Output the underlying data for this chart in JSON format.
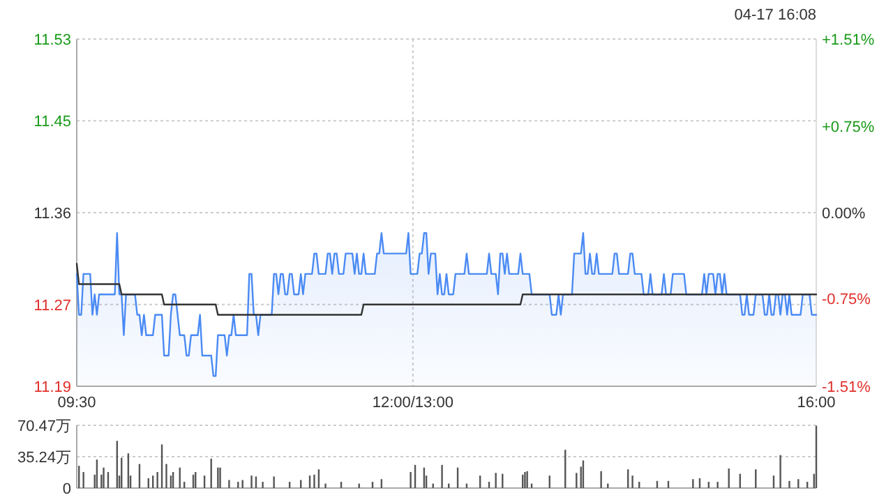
{
  "chart_data": [
    {
      "type": "line",
      "annotations": [
        "04-17 16:08"
      ],
      "categories": [
        "09:30",
        null,
        null,
        null,
        null,
        null,
        null,
        null,
        null,
        null,
        null,
        null,
        null,
        null,
        null,
        null,
        null,
        null,
        null,
        null,
        null,
        null,
        null,
        null,
        null,
        null,
        null,
        null,
        null,
        null,
        null,
        null,
        null,
        null,
        null,
        null,
        null,
        null,
        null,
        null,
        null,
        null,
        null,
        null,
        null,
        null,
        null,
        null,
        null,
        null,
        null,
        null,
        null,
        null,
        null,
        null,
        null,
        null,
        null,
        null,
        null,
        null,
        null,
        null,
        null,
        null,
        null,
        null,
        null,
        null,
        null,
        null,
        null,
        null,
        null,
        null,
        null,
        null,
        null,
        null,
        null,
        null,
        null,
        null,
        null,
        null,
        null,
        null,
        null,
        null,
        null,
        null,
        null,
        null,
        null,
        null,
        null,
        null,
        null,
        null,
        null,
        null,
        null,
        null,
        null,
        null,
        null,
        null,
        null,
        null,
        null,
        null,
        null,
        null,
        null,
        null,
        null,
        null,
        null,
        null,
        null,
        null,
        null,
        null,
        null,
        null,
        null,
        null,
        null,
        null,
        null,
        null,
        null,
        null,
        null,
        null,
        null,
        null,
        null,
        null,
        null,
        null,
        null,
        null,
        null,
        null,
        null,
        null,
        null,
        null,
        "12:00/13:00",
        null,
        null,
        null,
        null,
        null,
        null,
        null,
        null,
        null,
        null,
        null,
        null,
        null,
        null,
        null,
        null,
        null,
        null,
        null,
        null,
        null,
        null,
        null,
        null,
        null,
        null,
        null,
        null,
        null,
        null,
        null,
        null,
        null,
        null,
        null,
        null,
        null,
        null,
        null,
        null,
        null,
        null,
        null,
        null,
        null,
        null,
        null,
        null,
        null,
        null,
        null,
        null,
        null,
        null,
        null,
        null,
        null,
        null,
        null,
        null,
        null,
        null,
        null,
        null,
        null,
        null,
        null,
        null,
        null,
        null,
        null,
        null,
        null,
        null,
        null,
        null,
        null,
        null,
        null,
        null,
        null,
        null,
        null,
        null,
        null,
        null,
        null,
        null,
        null,
        null,
        null,
        null,
        null,
        null,
        null,
        null,
        null,
        null,
        null,
        null,
        null,
        null,
        null,
        null,
        null,
        null,
        null,
        null,
        null,
        null,
        null,
        null,
        null,
        null,
        null,
        null,
        null,
        null,
        null,
        null,
        null,
        null,
        null,
        null,
        null,
        null,
        null,
        null,
        null,
        null,
        null,
        null,
        null,
        null,
        null,
        null,
        null,
        null,
        null,
        null,
        null,
        null,
        null,
        null,
        null,
        null,
        null,
        null,
        null,
        null,
        null,
        null,
        null,
        null,
        null,
        null,
        null,
        null,
        null,
        null,
        null,
        null,
        null,
        null,
        null,
        null,
        null,
        null,
        null,
        null,
        null,
        null,
        null,
        null,
        null,
        null,
        null,
        null,
        null,
        "16:00"
      ],
      "ylim": [
        11.19,
        11.53
      ],
      "yticks": [
        11.19,
        11.27,
        11.36,
        11.45,
        11.53
      ],
      "y2lim": [
        -1.51,
        1.51
      ],
      "y2ticks": [
        {
          "value": -1.51,
          "label": "-1.51%"
        },
        {
          "value": -0.75,
          "label": "-0.75%"
        },
        {
          "value": 0,
          "label": "0.00%"
        },
        {
          "value": 0.75,
          "label": "+0.75%"
        },
        {
          "value": 1.51,
          "label": "+1.51%"
        }
      ],
      "grid": true,
      "series": [
        {
          "type": "area",
          "color": "#4a8af4",
          "values": [
            11.3,
            11.26,
            11.26,
            11.3,
            11.3,
            11.3,
            11.3,
            11.26,
            11.28,
            11.26,
            11.28,
            11.28,
            11.28,
            11.28,
            11.28,
            11.28,
            11.28,
            11.28,
            11.34,
            11.28,
            11.28,
            11.24,
            11.28,
            11.28,
            11.28,
            11.28,
            11.28,
            11.26,
            11.26,
            11.24,
            11.26,
            11.24,
            11.24,
            11.24,
            11.24,
            11.26,
            11.26,
            11.26,
            11.26,
            11.22,
            11.22,
            11.22,
            11.26,
            11.28,
            11.28,
            11.26,
            11.24,
            11.24,
            11.24,
            11.22,
            11.22,
            11.24,
            11.24,
            11.24,
            11.24,
            11.26,
            11.22,
            11.22,
            11.22,
            11.22,
            11.22,
            11.2,
            11.2,
            11.24,
            11.24,
            11.24,
            11.24,
            11.22,
            11.24,
            11.24,
            11.26,
            11.24,
            11.24,
            11.24,
            11.24,
            11.24,
            11.24,
            11.3,
            11.3,
            11.26,
            11.26,
            11.24,
            11.26,
            11.26,
            11.26,
            11.26,
            11.26,
            11.26,
            11.3,
            11.3,
            11.28,
            11.3,
            11.3,
            11.28,
            11.28,
            11.3,
            11.3,
            11.28,
            11.28,
            11.28,
            11.3,
            11.28,
            11.3,
            11.3,
            11.3,
            11.3,
            11.32,
            11.32,
            11.3,
            11.3,
            11.3,
            11.3,
            11.32,
            11.32,
            11.3,
            11.32,
            11.32,
            11.3,
            11.3,
            11.3,
            11.32,
            11.32,
            11.32,
            11.32,
            11.3,
            11.32,
            11.3,
            11.3,
            11.32,
            11.3,
            11.3,
            11.3,
            11.3,
            11.3,
            11.32,
            11.32,
            11.34,
            11.32,
            11.32,
            11.32,
            11.32,
            11.32,
            11.32,
            11.32,
            11.32,
            11.32,
            11.32,
            11.32,
            11.34,
            11.3,
            11.3,
            11.3,
            11.3,
            11.32,
            11.32,
            11.34,
            11.34,
            11.3,
            11.32,
            11.32,
            11.32,
            11.28,
            11.3,
            11.28,
            11.28,
            11.3,
            11.28,
            11.28,
            11.28,
            11.3,
            11.3,
            11.3,
            11.3,
            11.3,
            11.32,
            11.3,
            11.3,
            11.3,
            11.3,
            11.3,
            11.3,
            11.3,
            11.3,
            11.3,
            11.32,
            11.3,
            11.3,
            11.3,
            11.28,
            11.32,
            11.32,
            11.3,
            11.32,
            11.3,
            11.3,
            11.3,
            11.3,
            11.3,
            11.32,
            11.3,
            11.3,
            11.3,
            11.3,
            11.28,
            11.28,
            11.28,
            11.28,
            11.28,
            11.28,
            11.28,
            11.28,
            11.28,
            11.26,
            11.26,
            11.26,
            11.28,
            11.26,
            11.28,
            11.28,
            11.28,
            11.28,
            11.28,
            11.32,
            11.32,
            11.32,
            11.32,
            11.34,
            11.3,
            11.3,
            11.32,
            11.3,
            11.3,
            11.32,
            11.3,
            11.3,
            11.3,
            11.3,
            11.3,
            11.3,
            11.3,
            11.32,
            11.32,
            11.3,
            11.3,
            11.3,
            11.3,
            11.3,
            11.32,
            11.32,
            11.3,
            11.3,
            11.3,
            11.3,
            11.28,
            11.28,
            11.28,
            11.3,
            11.28,
            11.28,
            11.28,
            11.28,
            11.28,
            11.3,
            11.28,
            11.28,
            11.28,
            11.3,
            11.3,
            11.3,
            11.3,
            11.3,
            11.3,
            11.28,
            11.28,
            11.28,
            11.28,
            11.28,
            11.28,
            11.28,
            11.28,
            11.3,
            11.28,
            11.3,
            11.3,
            11.3,
            11.28,
            11.3,
            11.3,
            11.28,
            11.3,
            11.28,
            11.28,
            11.28,
            11.28,
            11.28,
            11.28,
            11.28,
            11.26,
            11.26,
            11.28,
            11.26,
            11.26,
            11.26,
            11.28,
            11.28,
            11.28,
            11.28,
            11.26,
            11.26,
            11.28,
            11.26,
            11.26,
            11.28,
            11.28,
            11.26,
            11.28,
            11.28,
            11.26,
            11.28,
            11.26,
            11.26,
            11.26,
            11.26,
            11.26,
            11.28,
            11.28,
            11.28,
            11.28,
            11.26,
            11.26,
            11.26
          ]
        },
        {
          "type": "line",
          "color": "#333333",
          "values": [
            11.31,
            11.29,
            11.29,
            11.29,
            11.29,
            11.29,
            11.29,
            11.29,
            11.29,
            11.29,
            11.29,
            11.29,
            11.29,
            11.29,
            11.29,
            11.29,
            11.29,
            11.29,
            11.29,
            11.29,
            11.28,
            11.28,
            11.28,
            11.28,
            11.28,
            11.28,
            11.28,
            11.28,
            11.28,
            11.28,
            11.28,
            11.28,
            11.28,
            11.28,
            11.28,
            11.28,
            11.28,
            11.28,
            11.28,
            11.27,
            11.27,
            11.27,
            11.27,
            11.27,
            11.27,
            11.27,
            11.27,
            11.27,
            11.27,
            11.27,
            11.27,
            11.27,
            11.27,
            11.27,
            11.27,
            11.27,
            11.27,
            11.27,
            11.27,
            11.27,
            11.27,
            11.27,
            11.27,
            11.26,
            11.26,
            11.26,
            11.26,
            11.26,
            11.26,
            11.26,
            11.26,
            11.26,
            11.26,
            11.26,
            11.26,
            11.26,
            11.26,
            11.26,
            11.26,
            11.26,
            11.26,
            11.26,
            11.26,
            11.26,
            11.26,
            11.26,
            11.26,
            11.26,
            11.26,
            11.26,
            11.26,
            11.26,
            11.26,
            11.26,
            11.26,
            11.26,
            11.26,
            11.26,
            11.26,
            11.26,
            11.26,
            11.26,
            11.26,
            11.26,
            11.26,
            11.26,
            11.26,
            11.26,
            11.26,
            11.26,
            11.26,
            11.26,
            11.26,
            11.26,
            11.26,
            11.26,
            11.26,
            11.26,
            11.26,
            11.26,
            11.26,
            11.26,
            11.26,
            11.26,
            11.26,
            11.26,
            11.26,
            11.26,
            11.27,
            11.27,
            11.27,
            11.27,
            11.27,
            11.27,
            11.27,
            11.27,
            11.27,
            11.27,
            11.27,
            11.27,
            11.27,
            11.27,
            11.27,
            11.27,
            11.27,
            11.27,
            11.27,
            11.27,
            11.27,
            11.27,
            11.27,
            11.27,
            11.27,
            11.27,
            11.27,
            11.27,
            11.27,
            11.27,
            11.27,
            11.27,
            11.27,
            11.27,
            11.27,
            11.27,
            11.27,
            11.27,
            11.27,
            11.27,
            11.27,
            11.27,
            11.27,
            11.27,
            11.27,
            11.27,
            11.27,
            11.27,
            11.27,
            11.27,
            11.27,
            11.27,
            11.27,
            11.27,
            11.27,
            11.27,
            11.27,
            11.27,
            11.27,
            11.27,
            11.27,
            11.27,
            11.27,
            11.27,
            11.27,
            11.27,
            11.27,
            11.27,
            11.27,
            11.27,
            11.27,
            11.28,
            11.28,
            11.28,
            11.28,
            11.28,
            11.28,
            11.28,
            11.28,
            11.28,
            11.28,
            11.28,
            11.28,
            11.28,
            11.28,
            11.28,
            11.28,
            11.28,
            11.28,
            11.28,
            11.28,
            11.28,
            11.28,
            11.28,
            11.28,
            11.28,
            11.28,
            11.28,
            11.28,
            11.28,
            11.28,
            11.28,
            11.28,
            11.28,
            11.28,
            11.28,
            11.28,
            11.28,
            11.28,
            11.28,
            11.28,
            11.28,
            11.28,
            11.28,
            11.28,
            11.28,
            11.28,
            11.28,
            11.28,
            11.28,
            11.28,
            11.28,
            11.28,
            11.28,
            11.28,
            11.28,
            11.28,
            11.28,
            11.28,
            11.28,
            11.28,
            11.28,
            11.28,
            11.28,
            11.28,
            11.28,
            11.28,
            11.28,
            11.28,
            11.28,
            11.28,
            11.28,
            11.28,
            11.28,
            11.28,
            11.28,
            11.28,
            11.28,
            11.28,
            11.28,
            11.28,
            11.28,
            11.28,
            11.28,
            11.28,
            11.28,
            11.28,
            11.28,
            11.28,
            11.28,
            11.28,
            11.28,
            11.28,
            11.28,
            11.28,
            11.28,
            11.28,
            11.28,
            11.28,
            11.28,
            11.28,
            11.28,
            11.28,
            11.28,
            11.28,
            11.28,
            11.28,
            11.28,
            11.28,
            11.28,
            11.28,
            11.28,
            11.28,
            11.28,
            11.28,
            11.28,
            11.28,
            11.28,
            11.28,
            11.28,
            11.28,
            11.28,
            11.28,
            11.28,
            11.28,
            11.28,
            11.28,
            11.28,
            11.28,
            11.28,
            11.28,
            11.28,
            11.28
          ]
        }
      ]
    },
    {
      "type": "bar",
      "color": "#555555",
      "grid": "y",
      "tick_labels": "y",
      "categories": [
        null,
        null,
        null,
        null,
        null,
        null,
        null,
        null,
        null,
        null,
        null,
        null,
        null,
        null,
        null,
        null,
        null,
        null,
        null,
        null,
        null,
        null,
        null,
        null,
        null,
        null,
        null,
        null,
        null,
        null,
        null,
        null,
        null,
        null,
        null,
        null,
        null,
        null,
        null,
        null,
        null,
        null,
        null,
        null,
        null,
        null,
        null,
        null,
        null,
        null,
        null,
        null,
        null,
        null,
        null,
        null,
        null,
        null,
        null,
        null,
        null,
        null,
        null,
        null,
        null,
        null,
        null,
        null,
        null,
        null,
        null,
        null,
        null,
        null,
        null,
        null,
        null,
        null,
        null,
        null,
        null,
        null,
        null,
        null,
        null,
        null,
        null,
        null,
        null,
        null,
        null,
        null,
        null,
        null,
        null,
        null,
        null,
        null,
        null,
        null,
        null,
        null,
        null,
        null,
        null,
        null,
        null,
        null,
        null,
        null,
        null,
        null,
        null,
        null,
        null,
        null,
        null,
        null,
        null,
        null,
        null,
        null,
        null,
        null,
        null,
        null,
        null,
        null,
        null,
        null,
        null,
        null,
        null,
        null,
        null,
        null,
        null,
        null,
        null,
        null,
        null,
        null,
        null,
        null,
        null,
        null,
        null,
        null,
        null,
        null,
        null,
        null,
        null,
        null,
        null,
        null,
        null,
        null,
        null,
        null,
        null,
        null,
        null,
        null,
        null,
        null,
        null,
        null,
        null,
        null,
        null,
        null,
        null,
        null,
        null,
        null,
        null,
        null,
        null,
        null,
        null,
        null,
        null,
        null,
        null,
        null,
        null,
        null,
        null,
        null,
        null,
        null,
        null,
        null,
        null,
        null,
        null,
        null,
        null,
        null,
        null,
        null,
        null,
        null,
        null,
        null,
        null,
        null,
        null,
        null,
        null,
        null,
        null,
        null,
        null,
        null,
        null,
        null,
        null,
        null,
        null,
        null,
        null,
        null,
        null,
        null,
        null,
        null,
        null,
        null,
        null,
        null,
        null,
        null,
        null,
        null,
        null,
        null,
        null,
        null,
        null,
        null,
        null,
        null,
        null,
        null,
        null,
        null,
        null,
        null,
        null,
        null,
        null,
        null,
        null,
        null,
        null,
        null,
        null,
        null,
        null,
        null,
        null,
        null,
        null,
        null,
        null,
        null,
        null,
        null,
        null,
        null,
        null,
        null,
        null,
        null,
        null,
        null,
        null,
        null,
        null,
        null,
        null,
        null,
        null,
        null,
        null,
        null,
        null,
        null,
        null,
        null,
        null,
        null,
        null,
        null,
        null,
        null,
        null,
        null,
        null,
        null,
        null,
        null,
        null,
        null,
        null,
        null,
        null,
        null,
        null,
        null,
        null,
        null,
        null,
        null,
        null,
        null,
        null,
        null,
        null,
        null,
        null,
        null,
        null,
        null,
        null,
        null,
        null,
        null,
        null
      ],
      "ylim": [
        0,
        70.47
      ],
      "yticks": [
        0,
        {
          "value": 35.24,
          "label": "35.24万"
        },
        {
          "value": 70.47,
          "label": "70.47万"
        }
      ],
      "values": [
        null,
        25,
        null,
        18,
        null,
        null,
        null,
        null,
        15,
        32,
        null,
        15,
        23,
        null,
        18,
        null,
        null,
        null,
        53,
        14,
        34,
        null,
        null,
        39,
        14,
        null,
        null,
        null,
        27,
        null,
        null,
        null,
        11,
        null,
        14,
        null,
        18,
        null,
        49,
        null,
        27,
        null,
        14,
        18,
        null,
        null,
        23,
        null,
        7,
        null,
        null,
        null,
        15,
        18,
        null,
        null,
        null,
        14,
        null,
        null,
        33,
        null,
        null,
        23,
        23,
        null,
        null,
        null,
        9,
        null,
        null,
        null,
        7,
        null,
        9,
        null,
        null,
        null,
        14,
        null,
        13,
        null,
        null,
        7,
        null,
        null,
        null,
        null,
        13,
        null,
        null,
        null,
        null,
        null,
        null,
        7,
        null,
        null,
        null,
        null,
        9,
        null,
        null,
        null,
        14,
        null,
        15,
        null,
        21,
        null,
        null,
        5,
        null,
        null,
        null,
        null,
        null,
        null,
        7,
        null,
        null,
        null,
        null,
        null,
        null,
        null,
        5,
        null,
        null,
        null,
        null,
        null,
        7,
        null,
        null,
        null,
        10,
        null,
        null,
        null,
        null,
        null,
        null,
        null,
        null,
        null,
        null,
        null,
        null,
        18,
        null,
        26,
        null,
        null,
        null,
        23,
        14,
        null,
        null,
        5,
        null,
        null,
        null,
        26,
        null,
        null,
        5,
        null,
        null,
        null,
        23,
        null,
        null,
        null,
        5,
        null,
        null,
        null,
        null,
        null,
        14,
        null,
        null,
        null,
        7,
        null,
        null,
        17,
        null,
        null,
        16,
        null,
        null,
        null,
        null,
        null,
        null,
        null,
        null,
        15,
        18,
        19,
        null,
        5,
        null,
        null,
        null,
        null,
        null,
        null,
        null,
        14,
        null,
        null,
        null,
        null,
        null,
        null,
        43,
        null,
        null,
        null,
        null,
        17,
        null,
        24,
        31,
        null,
        null,
        null,
        null,
        null,
        null,
        null,
        19,
        null,
        null,
        5,
        null,
        null,
        null,
        null,
        null,
        null,
        null,
        null,
        21,
        null,
        14,
        null,
        null,
        7,
        null,
        null,
        null,
        null,
        null,
        null,
        null,
        8,
        null,
        null,
        null,
        null,
        8,
        null,
        null,
        null,
        null,
        null,
        null,
        null,
        null,
        null,
        null,
        10,
        null,
        null,
        11,
        null,
        null,
        null,
        7,
        null,
        null,
        null,
        7,
        null,
        null,
        null,
        null,
        22,
        null,
        null,
        null,
        null,
        16,
        null,
        null,
        null,
        null,
        null,
        null,
        21,
        null,
        null,
        null,
        null,
        null,
        null,
        null,
        14,
        null,
        null,
        37,
        null,
        null,
        null,
        8,
        null,
        null,
        null,
        10,
        null,
        null,
        null,
        7,
        null,
        null,
        16,
        70
      ]
    }
  ]
}
